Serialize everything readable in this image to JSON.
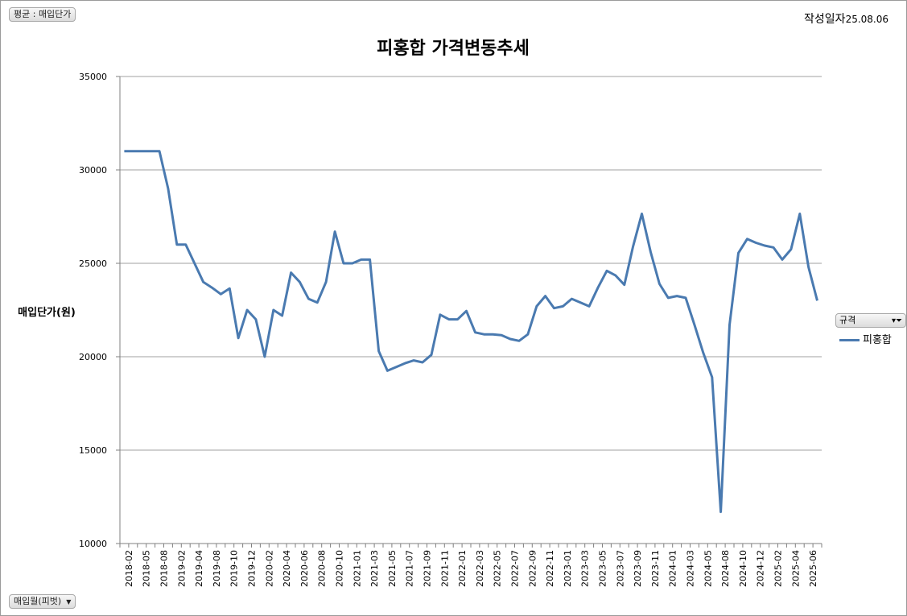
{
  "filter_pill": "평균 : 매입단가",
  "axis_field_pill": "매입월(피벗)",
  "date": {
    "label": "작성일자",
    "value": "25.08.06"
  },
  "legend": {
    "title": "규격",
    "entry": "피홍합"
  },
  "colors": {
    "series": "#4a7ab0",
    "grid": "#a0a0a0"
  },
  "chart_data": {
    "type": "line",
    "title": "피홍합 가격변동추세",
    "ylabel": "매입단가(원)",
    "xlabel": "",
    "ylim": [
      10000,
      35000
    ],
    "yticks": [
      10000,
      15000,
      20000,
      25000,
      30000,
      35000
    ],
    "grid": true,
    "legend_position": "right",
    "x_tick_labels": [
      "2018-02",
      "2018-05",
      "2018-08",
      "2019-02",
      "2019-04",
      "2019-08",
      "2019-10",
      "2019-12",
      "2020-02",
      "2020-04",
      "2020-06",
      "2020-08",
      "2020-10",
      "2021-01",
      "2021-03",
      "2021-05",
      "2021-07",
      "2021-09",
      "2021-11",
      "2022-01",
      "2022-03",
      "2022-05",
      "2022-07",
      "2022-09",
      "2022-11",
      "2023-01",
      "2023-03",
      "2023-05",
      "2023-07",
      "2023-09",
      "2023-11",
      "2024-01",
      "2024-03",
      "2024-05",
      "2024-08",
      "2024-10",
      "2024-12",
      "2025-02",
      "2025-04",
      "2025-06"
    ],
    "series": [
      {
        "name": "피홍합",
        "values": [
          31000,
          31000,
          31000,
          31000,
          31000,
          29000,
          26000,
          26000,
          25000,
          24000,
          23700,
          23350,
          23650,
          21000,
          22500,
          22000,
          20000,
          22500,
          22200,
          24500,
          24000,
          23100,
          22900,
          24000,
          26700,
          25000,
          25000,
          25200,
          25200,
          20300,
          19250,
          19450,
          19650,
          19800,
          19700,
          20100,
          22250,
          22000,
          22000,
          22450,
          21300,
          21200,
          21200,
          21150,
          20950,
          20850,
          21200,
          22700,
          23250,
          22600,
          22700,
          23100,
          22900,
          22700,
          23700,
          24600,
          24350,
          23850,
          25900,
          27650,
          25600,
          23900,
          23150,
          23250,
          23150,
          21700,
          20200,
          18900,
          11700,
          21700,
          25550,
          26300,
          26100,
          25950,
          25850,
          25200,
          25750,
          27650,
          24800,
          23000
        ]
      }
    ]
  }
}
